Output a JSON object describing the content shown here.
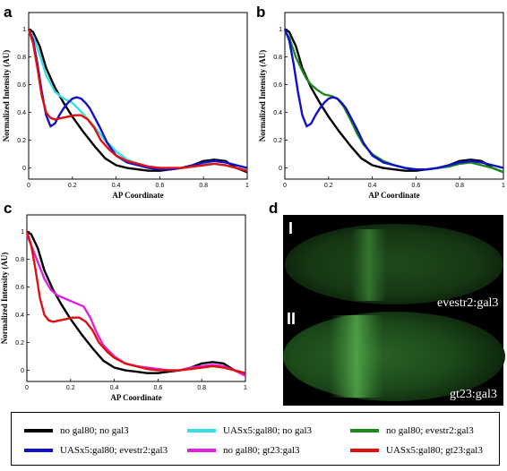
{
  "chart_data": [
    {
      "type": "line",
      "panel": "a",
      "xlabel": "AP Coordinate",
      "ylabel": "Normalized Intensity (AU)",
      "xlim": [
        0,
        1
      ],
      "ylim": [
        -0.08,
        1.12
      ],
      "xticks": [
        "0",
        "0.2",
        "0.4",
        "0.6",
        "0.8",
        "1"
      ],
      "yticks": [
        "0",
        "0.2",
        "0.4",
        "0.6",
        "0.8",
        "1"
      ],
      "series": [
        {
          "name": "no gal80; no gal3",
          "color": "#000000",
          "x": [
            0,
            0.02,
            0.05,
            0.08,
            0.12,
            0.16,
            0.2,
            0.25,
            0.3,
            0.35,
            0.4,
            0.45,
            0.5,
            0.55,
            0.6,
            0.65,
            0.7,
            0.75,
            0.8,
            0.85,
            0.9,
            0.95,
            1.0
          ],
          "y": [
            1.0,
            0.98,
            0.88,
            0.72,
            0.58,
            0.47,
            0.37,
            0.26,
            0.16,
            0.07,
            0.02,
            0.0,
            -0.01,
            -0.02,
            -0.02,
            -0.01,
            0.0,
            0.02,
            0.05,
            0.06,
            0.05,
            0.0,
            -0.03
          ]
        },
        {
          "name": "UASx5:gal80; no gal3",
          "color": "#33e0e6",
          "x": [
            0,
            0.02,
            0.05,
            0.08,
            0.12,
            0.16,
            0.2,
            0.25,
            0.3,
            0.35,
            0.4,
            0.45,
            0.5,
            0.55,
            0.6,
            0.65,
            0.7,
            0.75,
            0.8,
            0.85,
            0.9,
            0.95,
            1.0
          ],
          "y": [
            0.98,
            0.95,
            0.82,
            0.67,
            0.55,
            0.5,
            0.47,
            0.39,
            0.3,
            0.2,
            0.12,
            0.06,
            0.03,
            0.01,
            0.0,
            0.0,
            0.0,
            0.01,
            0.03,
            0.03,
            0.02,
            0.0,
            -0.02
          ]
        },
        {
          "name": "UASx5:gal80; evestr2:gal3",
          "color": "#1010c8",
          "x": [
            0,
            0.02,
            0.04,
            0.06,
            0.08,
            0.1,
            0.12,
            0.14,
            0.16,
            0.18,
            0.2,
            0.22,
            0.24,
            0.26,
            0.28,
            0.3,
            0.33,
            0.36,
            0.4,
            0.45,
            0.5,
            0.55,
            0.6,
            0.65,
            0.7,
            0.75,
            0.8,
            0.85,
            0.9,
            0.95,
            1.0
          ],
          "y": [
            1.0,
            0.92,
            0.75,
            0.55,
            0.38,
            0.3,
            0.32,
            0.38,
            0.43,
            0.47,
            0.5,
            0.51,
            0.5,
            0.47,
            0.43,
            0.37,
            0.28,
            0.18,
            0.09,
            0.04,
            0.02,
            0.0,
            -0.01,
            -0.01,
            0.0,
            0.02,
            0.04,
            0.05,
            0.04,
            0.02,
            0.0
          ]
        },
        {
          "name": "UASx5:gal80; gt23:gal3",
          "color": "#e01010",
          "x": [
            0,
            0.02,
            0.04,
            0.06,
            0.08,
            0.1,
            0.12,
            0.15,
            0.18,
            0.21,
            0.24,
            0.27,
            0.3,
            0.33,
            0.37,
            0.4,
            0.45,
            0.5,
            0.55,
            0.6,
            0.65,
            0.7,
            0.75,
            0.8,
            0.85,
            0.9,
            0.95,
            1.0
          ],
          "y": [
            1.0,
            0.9,
            0.72,
            0.52,
            0.4,
            0.36,
            0.35,
            0.36,
            0.37,
            0.38,
            0.38,
            0.35,
            0.29,
            0.2,
            0.13,
            0.09,
            0.05,
            0.03,
            0.01,
            0.0,
            0.0,
            0.0,
            0.01,
            0.02,
            0.03,
            0.02,
            0.0,
            -0.02
          ]
        }
      ]
    },
    {
      "type": "line",
      "panel": "b",
      "xlabel": "AP Coordinate",
      "ylabel": "Normalized Intensity (AU)",
      "xlim": [
        0,
        1
      ],
      "ylim": [
        -0.08,
        1.12
      ],
      "xticks": [
        "0",
        "0.2",
        "0.4",
        "0.6",
        "0.8",
        "1"
      ],
      "yticks": [
        "0",
        "0.2",
        "0.4",
        "0.6",
        "0.8",
        "1"
      ],
      "series": [
        {
          "name": "no gal80; no gal3",
          "color": "#000000",
          "x": [
            0,
            0.02,
            0.05,
            0.08,
            0.12,
            0.16,
            0.2,
            0.25,
            0.3,
            0.35,
            0.4,
            0.45,
            0.5,
            0.55,
            0.6,
            0.65,
            0.7,
            0.75,
            0.8,
            0.85,
            0.9,
            0.95,
            1.0
          ],
          "y": [
            1.0,
            0.98,
            0.88,
            0.72,
            0.58,
            0.47,
            0.37,
            0.26,
            0.16,
            0.07,
            0.02,
            0.0,
            -0.01,
            -0.02,
            -0.02,
            -0.01,
            0.0,
            0.02,
            0.05,
            0.06,
            0.05,
            0.0,
            -0.03
          ]
        },
        {
          "name": "no gal80; evestr2:gal3",
          "color": "#1a8a1a",
          "x": [
            0,
            0.02,
            0.05,
            0.08,
            0.1,
            0.12,
            0.15,
            0.18,
            0.21,
            0.24,
            0.27,
            0.3,
            0.33,
            0.36,
            0.4,
            0.45,
            0.5,
            0.55,
            0.6,
            0.65,
            0.7,
            0.75,
            0.8,
            0.85,
            0.9,
            0.95,
            1.0
          ],
          "y": [
            0.98,
            0.94,
            0.8,
            0.7,
            0.64,
            0.6,
            0.56,
            0.53,
            0.52,
            0.5,
            0.44,
            0.35,
            0.25,
            0.17,
            0.1,
            0.05,
            0.02,
            0.0,
            -0.01,
            -0.01,
            0.0,
            0.01,
            0.03,
            0.04,
            0.02,
            0.0,
            -0.03
          ]
        },
        {
          "name": "UASx5:gal80; evestr2:gal3",
          "color": "#1010c8",
          "x": [
            0,
            0.02,
            0.04,
            0.06,
            0.08,
            0.1,
            0.12,
            0.14,
            0.16,
            0.18,
            0.2,
            0.22,
            0.24,
            0.26,
            0.28,
            0.3,
            0.33,
            0.36,
            0.4,
            0.45,
            0.5,
            0.55,
            0.6,
            0.65,
            0.7,
            0.75,
            0.8,
            0.85,
            0.9,
            0.95,
            1.0
          ],
          "y": [
            1.0,
            0.92,
            0.75,
            0.55,
            0.38,
            0.3,
            0.32,
            0.38,
            0.43,
            0.47,
            0.5,
            0.51,
            0.5,
            0.47,
            0.43,
            0.37,
            0.28,
            0.18,
            0.09,
            0.04,
            0.02,
            0.0,
            -0.01,
            -0.01,
            0.0,
            0.02,
            0.04,
            0.05,
            0.04,
            0.02,
            0.0
          ]
        }
      ]
    },
    {
      "type": "line",
      "panel": "c",
      "xlabel": "AP Coordinate",
      "ylabel": "Normalized Intensity (AU)",
      "xlim": [
        0,
        1
      ],
      "ylim": [
        -0.08,
        1.12
      ],
      "xticks": [
        "0",
        "0.2",
        "0.4",
        "0.6",
        "0.8",
        "1"
      ],
      "yticks": [
        "0",
        "0.2",
        "0.4",
        "0.6",
        "0.8",
        "1"
      ],
      "series": [
        {
          "name": "no gal80; no gal3",
          "color": "#000000",
          "x": [
            0,
            0.02,
            0.05,
            0.08,
            0.12,
            0.16,
            0.2,
            0.25,
            0.3,
            0.35,
            0.4,
            0.45,
            0.5,
            0.55,
            0.6,
            0.65,
            0.7,
            0.75,
            0.8,
            0.85,
            0.9,
            0.95,
            1.0
          ],
          "y": [
            1.0,
            0.98,
            0.88,
            0.72,
            0.58,
            0.47,
            0.37,
            0.26,
            0.16,
            0.07,
            0.02,
            0.0,
            -0.01,
            -0.02,
            -0.02,
            -0.01,
            0.0,
            0.02,
            0.05,
            0.06,
            0.05,
            0.0,
            -0.03
          ]
        },
        {
          "name": "no gal80; gt23:gal3",
          "color": "#e020e0",
          "x": [
            0,
            0.02,
            0.05,
            0.08,
            0.11,
            0.14,
            0.17,
            0.2,
            0.23,
            0.26,
            0.29,
            0.32,
            0.35,
            0.4,
            0.45,
            0.5,
            0.55,
            0.6,
            0.65,
            0.7,
            0.75,
            0.8,
            0.85,
            0.9,
            0.95,
            1.0
          ],
          "y": [
            0.98,
            0.9,
            0.78,
            0.66,
            0.58,
            0.54,
            0.52,
            0.5,
            0.48,
            0.46,
            0.38,
            0.27,
            0.18,
            0.1,
            0.05,
            0.03,
            0.02,
            0.01,
            0.0,
            0.0,
            0.02,
            0.03,
            0.04,
            0.03,
            0.0,
            -0.04
          ]
        },
        {
          "name": "UASx5:gal80; gt23:gal3",
          "color": "#e01010",
          "x": [
            0,
            0.02,
            0.04,
            0.06,
            0.08,
            0.1,
            0.12,
            0.15,
            0.18,
            0.21,
            0.24,
            0.27,
            0.3,
            0.33,
            0.37,
            0.4,
            0.45,
            0.5,
            0.55,
            0.6,
            0.65,
            0.7,
            0.75,
            0.8,
            0.85,
            0.9,
            0.95,
            1.0
          ],
          "y": [
            1.0,
            0.9,
            0.72,
            0.52,
            0.4,
            0.36,
            0.35,
            0.36,
            0.37,
            0.38,
            0.38,
            0.35,
            0.29,
            0.2,
            0.13,
            0.09,
            0.05,
            0.03,
            0.01,
            0.0,
            0.0,
            0.0,
            0.01,
            0.02,
            0.03,
            0.02,
            0.0,
            -0.02
          ]
        }
      ]
    }
  ],
  "panels": {
    "a": {
      "letter": "a"
    },
    "b": {
      "letter": "b"
    },
    "c": {
      "letter": "c"
    },
    "d": {
      "letter": "d",
      "embryo1_numeral": "I",
      "embryo1_label": "evestr2:gal3",
      "embryo2_numeral": "II",
      "embryo2_label": "gt23:gal3"
    }
  },
  "legend": [
    {
      "label": "no gal80; no gal3",
      "color": "#000000"
    },
    {
      "label": "UASx5:gal80; no gal3",
      "color": "#33e0e6"
    },
    {
      "label": "no gal80; evestr2:gal3",
      "color": "#1a8a1a"
    },
    {
      "label": "UASx5:gal80; evestr2:gal3",
      "color": "#1010c8"
    },
    {
      "label": "no gal80; gt23:gal3",
      "color": "#e020e0"
    },
    {
      "label": "UASx5:gal80; gt23:gal3",
      "color": "#e01010"
    }
  ]
}
